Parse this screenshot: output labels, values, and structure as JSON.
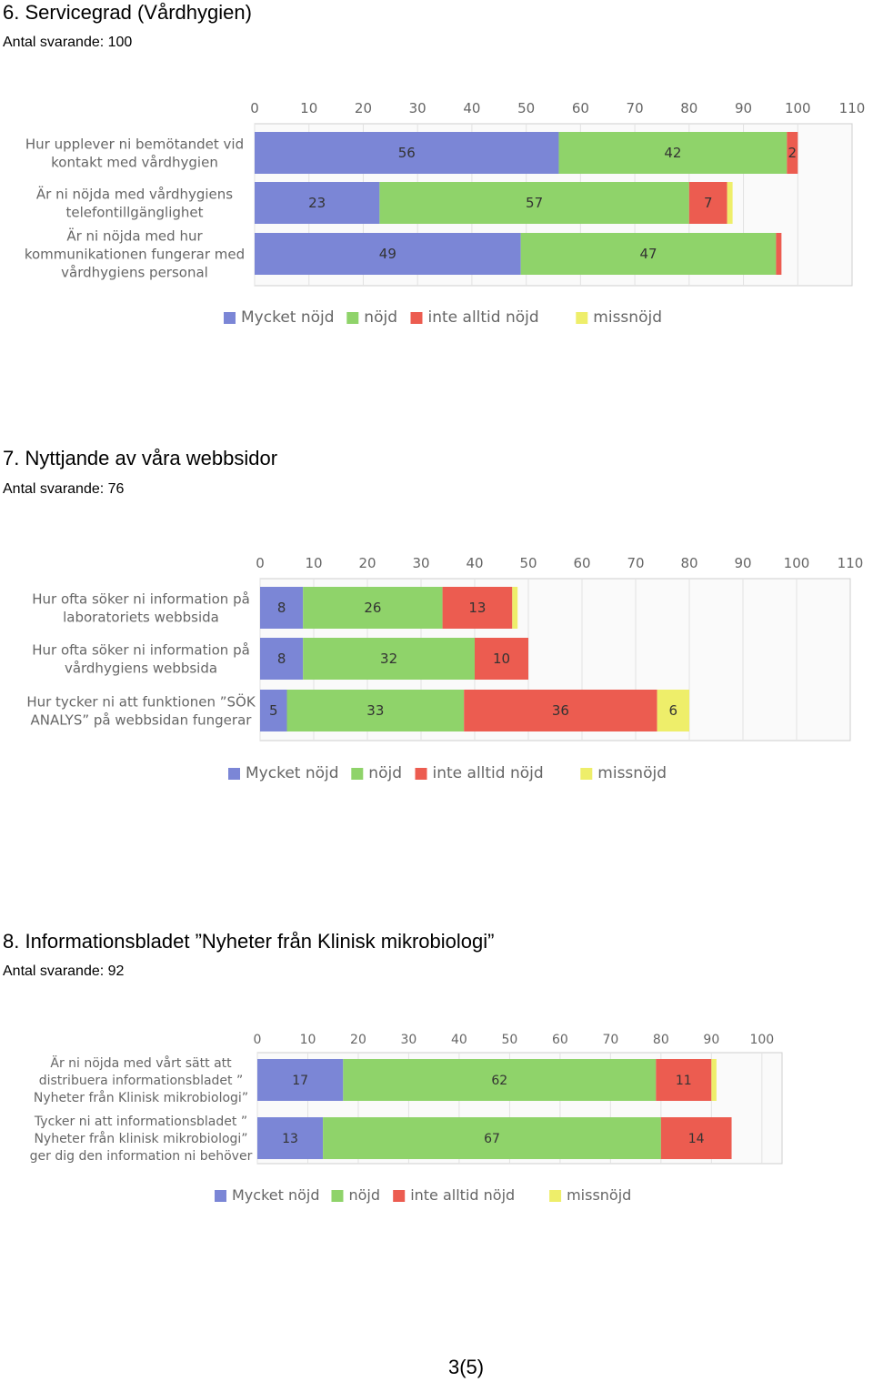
{
  "page_number": "3(5)",
  "colors": {
    "Mycket nöjd": "#7b86d6",
    "nöjd": "#8fd36a",
    "inte alltid nöjd": "#ec5c50",
    "missnöjd": "#eeee6a",
    "grid": "#e2e2e2",
    "label": "#666666"
  },
  "sections": [
    {
      "title": "6. Servicegrad (Vårdhygien)",
      "subtitle": "Antal svarande: 100"
    },
    {
      "title": "7. Nyttjande av våra webbsidor",
      "subtitle": "Antal svarande: 76"
    },
    {
      "title": "8. Informationsbladet ”Nyheter från Klinisk mikrobiologi”",
      "subtitle": "Antal svarande: 92"
    }
  ],
  "chart_data": [
    {
      "type": "bar",
      "orientation": "horizontal",
      "stacked": true,
      "xlim": [
        0,
        110
      ],
      "xticks": [
        "0",
        "10",
        "20",
        "30",
        "40",
        "50",
        "60",
        "70",
        "80",
        "90",
        "100",
        "110"
      ],
      "categories": [
        [
          "Hur upplever ni bemötandet vid",
          "kontakt med vårdhygien"
        ],
        [
          "Är ni nöjda med vårdhygiens",
          "telefontillgänglighet"
        ],
        [
          "Är ni nöjda med hur",
          "kommunikationen fungerar med",
          "vårdhygiens personal"
        ]
      ],
      "series": [
        {
          "name": "Mycket nöjd",
          "values": [
            56,
            23,
            49
          ]
        },
        {
          "name": "nöjd",
          "values": [
            42,
            57,
            47
          ]
        },
        {
          "name": "inte alltid nöjd",
          "values": [
            2,
            7,
            1
          ]
        },
        {
          "name": "missnöjd",
          "values": [
            0,
            1,
            0
          ]
        }
      ],
      "grid": true,
      "legend": "bottom"
    },
    {
      "type": "bar",
      "orientation": "horizontal",
      "stacked": true,
      "xlim": [
        0,
        110
      ],
      "xticks": [
        "0",
        "10",
        "20",
        "30",
        "40",
        "50",
        "60",
        "70",
        "80",
        "90",
        "100",
        "110"
      ],
      "categories": [
        [
          "Hur ofta söker ni information på",
          "laboratoriets webbsida"
        ],
        [
          "Hur ofta söker ni information på",
          "vårdhygiens webbsida"
        ],
        [
          "Hur tycker ni att funktionen ”SÖK",
          "ANALYS” på webbsidan fungerar"
        ]
      ],
      "series": [
        {
          "name": "Mycket nöjd",
          "values": [
            8,
            8,
            5
          ]
        },
        {
          "name": "nöjd",
          "values": [
            26,
            32,
            33
          ]
        },
        {
          "name": "inte alltid nöjd",
          "values": [
            13,
            10,
            36
          ]
        },
        {
          "name": "missnöjd",
          "values": [
            1,
            0,
            6
          ]
        }
      ],
      "grid": true,
      "legend": "bottom"
    },
    {
      "type": "bar",
      "orientation": "horizontal",
      "stacked": true,
      "xlim": [
        0,
        104
      ],
      "xticks": [
        "0",
        "10",
        "20",
        "30",
        "40",
        "50",
        "60",
        "70",
        "80",
        "90",
        "100"
      ],
      "categories": [
        [
          "Är ni nöjda med vårt sätt att",
          "distribuera informationsbladet ”",
          "Nyheter från Klinisk mikrobiologi”"
        ],
        [
          "Tycker ni att informationsbladet ”",
          "Nyheter från klinisk mikrobiologi”",
          "ger dig den information ni behöver"
        ]
      ],
      "series": [
        {
          "name": "Mycket nöjd",
          "values": [
            17,
            13
          ]
        },
        {
          "name": "nöjd",
          "values": [
            62,
            67
          ]
        },
        {
          "name": "inte alltid nöjd",
          "values": [
            11,
            14
          ]
        },
        {
          "name": "missnöjd",
          "values": [
            1,
            0
          ]
        }
      ],
      "grid": true,
      "legend": "bottom"
    }
  ]
}
